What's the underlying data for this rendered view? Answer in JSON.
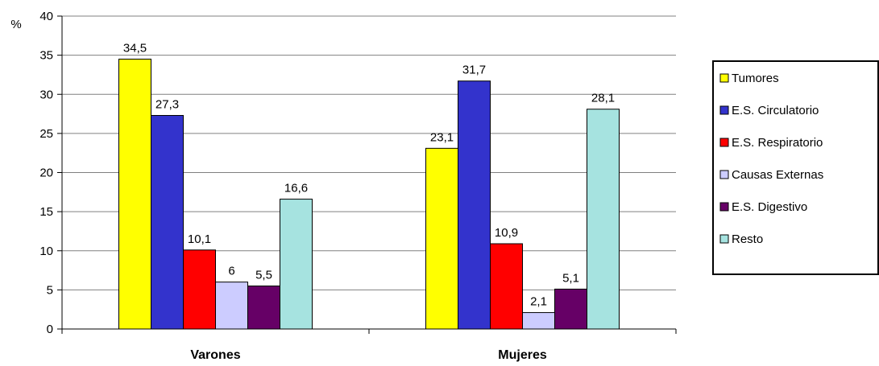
{
  "chart_data": {
    "type": "bar",
    "y_unit": "%",
    "categories": [
      "Varones",
      "Mujeres"
    ],
    "series": [
      {
        "name": "Tumores",
        "color": "#FFFF00",
        "values": [
          34.5,
          23.1
        ],
        "labels": [
          "34,5",
          "23,1"
        ]
      },
      {
        "name": "E.S. Circulatorio",
        "color": "#3333CC",
        "values": [
          27.3,
          31.7
        ],
        "labels": [
          "27,3",
          "31,7"
        ]
      },
      {
        "name": "E.S. Respiratorio",
        "color": "#FF0000",
        "values": [
          10.1,
          10.9
        ],
        "labels": [
          "10,1",
          "10,9"
        ]
      },
      {
        "name": "Causas Externas",
        "color": "#CCCCFF",
        "values": [
          6,
          2.1
        ],
        "labels": [
          "6",
          "2,1"
        ]
      },
      {
        "name": "E.S. Digestivo",
        "color": "#660066",
        "values": [
          5.5,
          5.1
        ],
        "labels": [
          "5,5",
          "5,1"
        ]
      },
      {
        "name": "Resto",
        "color": "#A6E3E0",
        "values": [
          16.6,
          28.1
        ],
        "labels": [
          "16,6",
          "28,1"
        ]
      }
    ],
    "ylim": [
      0,
      40
    ],
    "yticks": [
      0,
      5,
      10,
      15,
      20,
      25,
      30,
      35,
      40
    ],
    "grid": true,
    "legend_position": "right"
  }
}
